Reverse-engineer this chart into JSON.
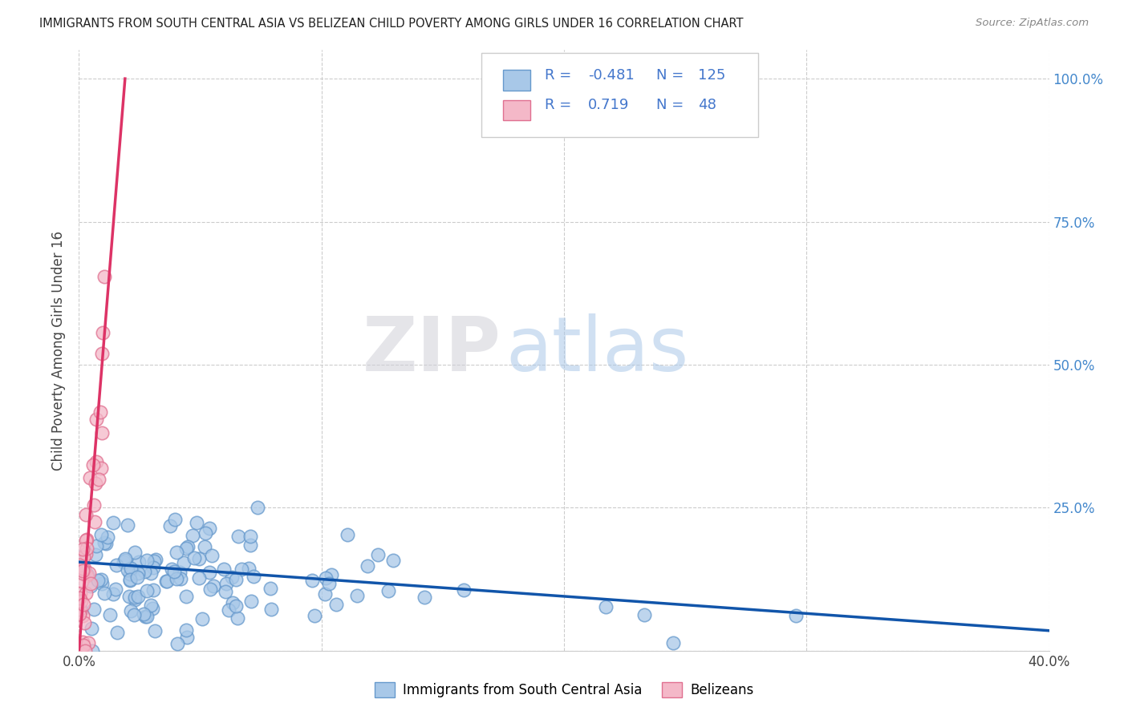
{
  "title": "IMMIGRANTS FROM SOUTH CENTRAL ASIA VS BELIZEAN CHILD POVERTY AMONG GIRLS UNDER 16 CORRELATION CHART",
  "source": "Source: ZipAtlas.com",
  "ylabel": "Child Poverty Among Girls Under 16",
  "watermark_zip": "ZIP",
  "watermark_atlas": "atlas",
  "legend_blue_R": "-0.481",
  "legend_blue_N": "125",
  "legend_pink_R": "0.719",
  "legend_pink_N": "48",
  "legend_blue_label": "Immigrants from South Central Asia",
  "legend_pink_label": "Belizeans",
  "blue_color": "#a8c8e8",
  "pink_color": "#f4b8c8",
  "blue_edge_color": "#6699cc",
  "pink_edge_color": "#e07090",
  "blue_line_color": "#1155aa",
  "pink_line_color": "#dd3366",
  "background_color": "#ffffff",
  "grid_color": "#cccccc",
  "title_color": "#222222",
  "right_axis_color": "#4488cc",
  "text_blue_color": "#4477cc",
  "text_pink_color": "#dd3366",
  "blue_line_x": [
    0.0,
    0.4
  ],
  "blue_line_y": [
    0.155,
    0.035
  ],
  "pink_line_x": [
    0.0,
    0.019
  ],
  "pink_line_y": [
    0.0,
    1.0
  ],
  "xlim": [
    0.0,
    0.4
  ],
  "ylim": [
    0.0,
    1.05
  ]
}
